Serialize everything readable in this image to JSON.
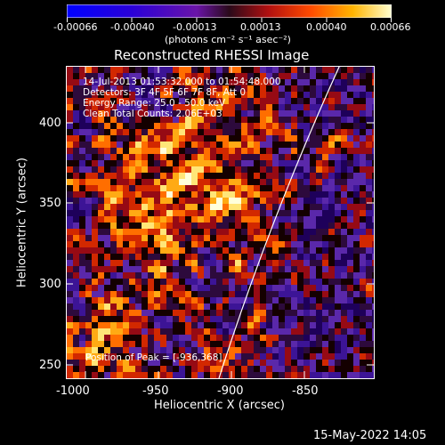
{
  "colorbar": {
    "ticks": [
      "-0.00066",
      "-0.00040",
      "-0.00013",
      "0.00013",
      "0.00040",
      "0.00066"
    ],
    "units": "(photons cm⁻² s⁻¹ asec⁻²)"
  },
  "title": "Reconstructed RHESSI Image",
  "overlay": {
    "line1": "14-Jul-2013 01:53:32.000 to 01:54:48.000",
    "line2": "Detectors: 3F 4F 5F 6F 7F 8F, Att 0",
    "line3": "Energy Range: 25.0 - 50.0 keV",
    "line4": "Clean    Total Counts: 2.06E+03",
    "peak": "Position of Peak = [-936,368]"
  },
  "axes": {
    "x_ticks": [
      "-1000",
      "-950",
      "-900",
      "-850"
    ],
    "y_ticks": [
      "400",
      "350",
      "300",
      "250"
    ],
    "xlabel": "Heliocentric X (arcsec)",
    "ylabel": "Heliocentric Y (arcsec)"
  },
  "footer": {
    "date": "15-May-2022 14:05"
  },
  "colors": {
    "background": "#000000",
    "limb": "#ffffff",
    "text": "#ffffff"
  }
}
